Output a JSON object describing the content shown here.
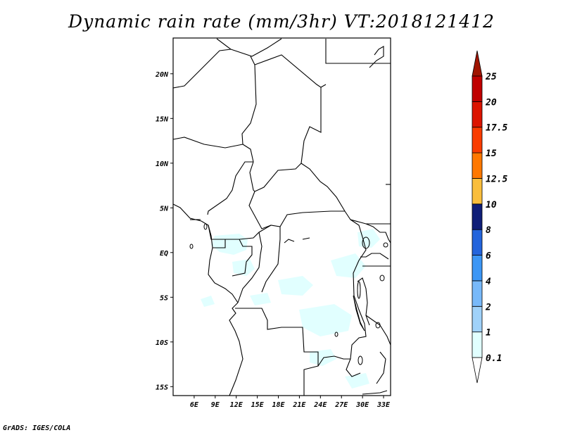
{
  "title": "Dynamic rain rate (mm/3hr)  VT:2018121412",
  "credit": "GrADS: IGES/COLA",
  "map": {
    "lon_range": [
      3,
      34
    ],
    "lat_range": [
      -16,
      24
    ],
    "lon_ticks": [
      {
        "lon": 6,
        "label": "6E"
      },
      {
        "lon": 9,
        "label": "9E"
      },
      {
        "lon": 12,
        "label": "12E"
      },
      {
        "lon": 15,
        "label": "15E"
      },
      {
        "lon": 18,
        "label": "18E"
      },
      {
        "lon": 21,
        "label": "21E"
      },
      {
        "lon": 24,
        "label": "24E"
      },
      {
        "lon": 27,
        "label": "27E"
      },
      {
        "lon": 30,
        "label": "30E"
      },
      {
        "lon": 33,
        "label": "33E"
      }
    ],
    "lat_ticks": [
      {
        "lat": 20,
        "label": "20N"
      },
      {
        "lat": 15,
        "label": "15N"
      },
      {
        "lat": 10,
        "label": "10N"
      },
      {
        "lat": 5,
        "label": "5N"
      },
      {
        "lat": 0,
        "label": "EQ"
      },
      {
        "lat": -5,
        "label": "5S"
      },
      {
        "lat": -10,
        "label": "10S"
      },
      {
        "lat": -15,
        "label": "15S"
      }
    ]
  },
  "colorbar": {
    "colors": [
      "#e1ffff",
      "#a0d2fa",
      "#78b9fa",
      "#3c96f5",
      "#2364dc",
      "#0f1e78",
      "#fabe3c",
      "#ff7800",
      "#fa3c00",
      "#dc1400",
      "#c00000"
    ],
    "top_color": "#a01400",
    "labels": [
      "0.1",
      "1",
      "2",
      "4",
      "6",
      "8",
      "10",
      "12.5",
      "15",
      "17.5",
      "20",
      "25"
    ]
  }
}
